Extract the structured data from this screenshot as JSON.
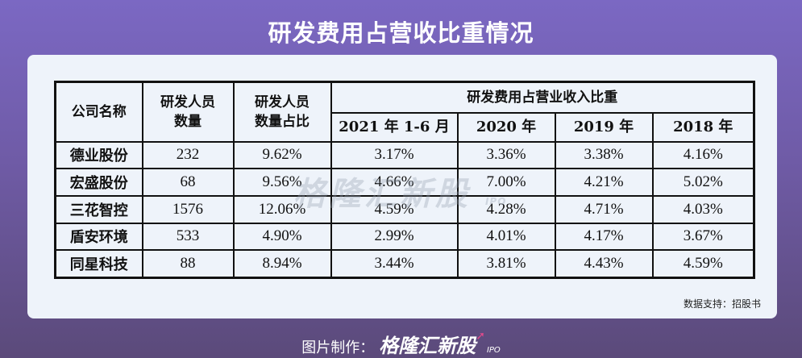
{
  "title": "研发费用占营收比重情况",
  "table": {
    "header": {
      "company": "公司名称",
      "staff_count_l1": "研发人员",
      "staff_count_l2": "数量",
      "staff_ratio_l1": "研发人员",
      "staff_ratio_l2": "数量占比",
      "group": "研发费用占营业收入比重",
      "years": [
        "2021 年 1-6 月",
        "2020 年",
        "2019 年",
        "2018 年"
      ]
    },
    "rows": [
      {
        "name": "德业股份",
        "count": "232",
        "ratio": "9.62%",
        "v2021": "3.17%",
        "v2020": "3.36%",
        "v2019": "3.38%",
        "v2018": "4.16%"
      },
      {
        "name": "宏盛股份",
        "count": "68",
        "ratio": "9.56%",
        "v2021": "4.66%",
        "v2020": "7.00%",
        "v2019": "4.21%",
        "v2018": "5.02%"
      },
      {
        "name": "三花智控",
        "count": "1576",
        "ratio": "12.06%",
        "v2021": "4.59%",
        "v2020": "4.28%",
        "v2019": "4.71%",
        "v2018": "4.03%"
      },
      {
        "name": "盾安环境",
        "count": "533",
        "ratio": "4.90%",
        "v2021": "2.99%",
        "v2020": "4.01%",
        "v2019": "4.17%",
        "v2018": "3.67%"
      },
      {
        "name": "同星科技",
        "count": "88",
        "ratio": "8.94%",
        "v2021": "3.44%",
        "v2020": "3.81%",
        "v2019": "4.43%",
        "v2018": "4.59%"
      }
    ]
  },
  "source": "数据支持：招股书",
  "watermark": {
    "text": "格隆汇新股",
    "suffix": "IPO"
  },
  "footer": {
    "prefix": "图片制作：",
    "brand": "格隆汇新股",
    "suffix": "IPO"
  }
}
